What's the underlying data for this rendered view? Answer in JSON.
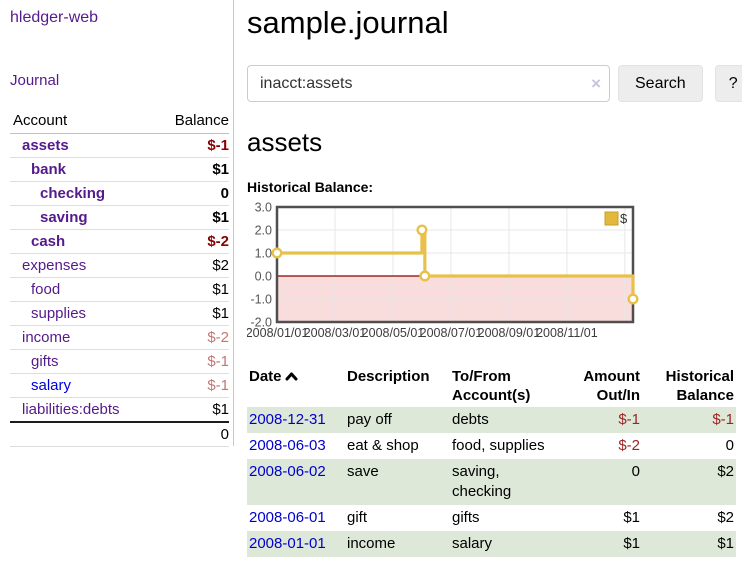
{
  "app": {
    "brand": "hledger-web",
    "nav_journal": "Journal"
  },
  "colors": {
    "brand_purple": "#551a8b",
    "unvisited_blue": "#0000dd",
    "date_blue": "#0000cc",
    "negative_strong": "#8b0000",
    "negative_soft": "#c17777",
    "row_green": "#dde8d8"
  },
  "sidebar": {
    "accounts_header": {
      "account": "Account",
      "balance": "Balance"
    },
    "accounts": [
      {
        "name": "assets",
        "balance": "$-1",
        "indent": 0,
        "bold": true,
        "balance_color": "negstrong"
      },
      {
        "name": "bank",
        "balance": "$1",
        "indent": 1,
        "bold": true,
        "balance_color": "pos"
      },
      {
        "name": "checking",
        "balance": "0",
        "indent": 2,
        "bold": true,
        "balance_color": "pos"
      },
      {
        "name": "saving",
        "balance": "$1",
        "indent": 2,
        "bold": true,
        "balance_color": "pos"
      },
      {
        "name": "cash",
        "balance": "$-2",
        "indent": 1,
        "bold": true,
        "balance_color": "negstrong"
      },
      {
        "name": "expenses",
        "balance": "$2",
        "indent": 0,
        "bold": false,
        "balance_color": "pos"
      },
      {
        "name": "food",
        "balance": "$1",
        "indent": 1,
        "bold": false,
        "balance_color": "pos"
      },
      {
        "name": "supplies",
        "balance": "$1",
        "indent": 1,
        "bold": false,
        "balance_color": "pos"
      },
      {
        "name": "income",
        "balance": "$-2",
        "indent": 0,
        "bold": false,
        "balance_color": "negsoft"
      },
      {
        "name": "gifts",
        "balance": "$-1",
        "indent": 1,
        "bold": false,
        "balance_color": "negsoft"
      },
      {
        "name": "salary",
        "balance": "$-1",
        "indent": 1,
        "bold": false,
        "balance_color": "negsoft",
        "link_color": "blue"
      },
      {
        "name": "liabilities:debts",
        "balance": "$1",
        "indent": 0,
        "bold": false,
        "balance_color": "pos"
      }
    ],
    "total": "0"
  },
  "header": {
    "title": "sample.journal"
  },
  "search": {
    "value": "inacct:assets",
    "clear_icon": "×",
    "search_label": "Search",
    "help_label": "?"
  },
  "account_page": {
    "title": "assets",
    "chart_label": "Historical Balance:"
  },
  "chart_data": {
    "type": "line",
    "step": true,
    "title": "Historical Balance",
    "legend": [
      {
        "label": "$",
        "color": "#e2b93c"
      }
    ],
    "points": [
      {
        "date": "2008-01-01",
        "m": 0,
        "value": 1
      },
      {
        "date": "2008-06-01",
        "m": 5.0,
        "value": 2
      },
      {
        "date": "2008-06-03",
        "m": 5.1,
        "value": 0
      },
      {
        "date": "2008-12-31",
        "m": 12.28,
        "value": -1
      }
    ],
    "x_ticks": [
      {
        "m": 0,
        "label": "2008/01/01"
      },
      {
        "m": 2,
        "label": "2008/03/01"
      },
      {
        "m": 4,
        "label": "2008/05/01"
      },
      {
        "m": 6,
        "label": "2008/07/01"
      },
      {
        "m": 8,
        "label": "2008/09/01"
      },
      {
        "m": 10,
        "label": "2008/11/01"
      }
    ],
    "grid_extra_m": [
      12
    ],
    "y_ticks": [
      "3.0",
      "2.0",
      "1.0",
      "0.0",
      "-1.0",
      "-2.0"
    ],
    "ylim": [
      -2,
      3
    ],
    "xlim_m": [
      0,
      12.28
    ],
    "grid": true,
    "legend_position": "top-right",
    "colors": {
      "line": "#e8c14a",
      "negative_area": "#f9dcdc",
      "zero_line": "#8b0000",
      "border": "#4f4f4f",
      "grid": "#e7e7e7"
    }
  },
  "register": {
    "columns": {
      "date": "Date",
      "description": "Description",
      "accounts": "To/From Account(s)",
      "amount": "Amount Out/In",
      "balance": "Historical Balance"
    },
    "rows": [
      {
        "date": "2008-12-31",
        "description": "pay off",
        "accounts": "debts",
        "amount": "$-1",
        "amount_neg": true,
        "balance": "$-1",
        "balance_neg": true
      },
      {
        "date": "2008-06-03",
        "description": "eat & shop",
        "accounts": "food, supplies",
        "amount": "$-2",
        "amount_neg": true,
        "balance": "0",
        "balance_neg": false
      },
      {
        "date": "2008-06-02",
        "description": "save",
        "accounts": "saving, checking",
        "amount": "0",
        "amount_neg": false,
        "balance": "$2",
        "balance_neg": false
      },
      {
        "date": "2008-06-01",
        "description": "gift",
        "accounts": "gifts",
        "amount": "$1",
        "amount_neg": false,
        "balance": "$2",
        "balance_neg": false
      },
      {
        "date": "2008-01-01",
        "description": "income",
        "accounts": "salary",
        "amount": "$1",
        "amount_neg": false,
        "balance": "$1",
        "balance_neg": false
      }
    ]
  }
}
